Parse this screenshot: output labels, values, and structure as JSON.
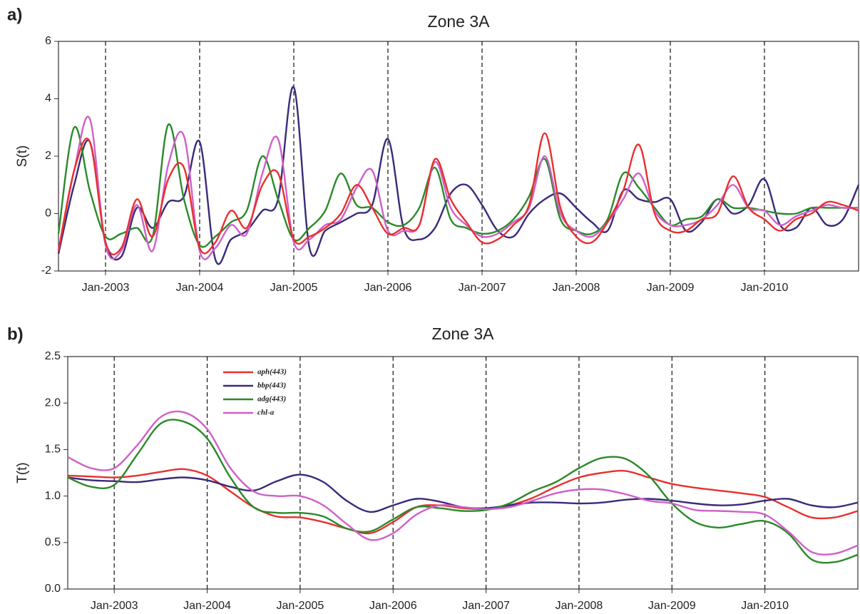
{
  "chart_data": [
    {
      "type": "line",
      "panel_label": "a)",
      "title": "Zone 3A",
      "y_label": "S(t)",
      "x": [
        2002.5,
        2002.667,
        2002.833,
        2003,
        2003.167,
        2003.333,
        2003.5,
        2003.667,
        2003.833,
        2004,
        2004.167,
        2004.333,
        2004.5,
        2004.667,
        2004.833,
        2005,
        2005.167,
        2005.333,
        2005.5,
        2005.667,
        2005.833,
        2006,
        2006.167,
        2006.333,
        2006.5,
        2006.667,
        2006.833,
        2007,
        2007.167,
        2007.333,
        2007.5,
        2007.667,
        2007.833,
        2008,
        2008.167,
        2008.333,
        2008.5,
        2008.667,
        2008.833,
        2009,
        2009.167,
        2009.333,
        2009.5,
        2009.667,
        2009.833,
        2010,
        2010.167,
        2010.333,
        2010.5,
        2010.667,
        2010.833,
        2011
      ],
      "series": [
        {
          "color": "#3a2a7a",
          "values": [
            -1.4,
            1.0,
            2.5,
            -1.0,
            -1.5,
            0.2,
            -0.5,
            0.4,
            0.6,
            2.5,
            -1.6,
            -0.9,
            -0.6,
            0.1,
            0.5,
            4.4,
            -1.2,
            -0.6,
            -0.3,
            0.0,
            0.3,
            2.6,
            -0.5,
            -0.9,
            -0.5,
            0.7,
            1.0,
            0.3,
            -0.6,
            -0.8,
            0.0,
            0.5,
            0.7,
            0.2,
            -0.3,
            -0.6,
            0.8,
            0.5,
            0.4,
            0.5,
            -0.6,
            -0.3,
            0.5,
            0.0,
            0.3,
            1.2,
            -0.4,
            -0.5,
            0.2,
            -0.4,
            -0.2,
            1.0
          ]
        },
        {
          "color": "#2a8a2a",
          "values": [
            -0.7,
            3.0,
            0.8,
            -0.8,
            -0.7,
            -0.5,
            -0.8,
            3.1,
            0.5,
            -1.1,
            -0.8,
            -0.3,
            0.1,
            2.0,
            0.5,
            -0.9,
            -0.5,
            0.1,
            1.4,
            0.3,
            0.2,
            -0.3,
            -0.4,
            0.2,
            1.6,
            -0.2,
            -0.5,
            -0.7,
            -0.6,
            -0.2,
            0.6,
            1.9,
            -0.2,
            -0.6,
            -0.7,
            -0.2,
            1.4,
            0.9,
            0.2,
            -0.4,
            -0.2,
            -0.1,
            0.5,
            0.2,
            0.2,
            0.1,
            0.0,
            0.0,
            0.2,
            0.2,
            0.2,
            0.2
          ]
        },
        {
          "color": "#d060c8",
          "values": [
            -1.3,
            1.5,
            3.3,
            -1.1,
            -1.3,
            0.3,
            -1.3,
            1.7,
            2.7,
            -1.3,
            -1.2,
            -0.4,
            -0.7,
            1.4,
            2.6,
            -1.0,
            -0.9,
            -0.4,
            -0.2,
            0.9,
            1.5,
            -0.6,
            -0.6,
            -0.4,
            1.8,
            0.2,
            -0.4,
            -0.8,
            -0.7,
            -0.3,
            0.2,
            2.0,
            0.0,
            -0.6,
            -0.8,
            -0.3,
            0.5,
            1.4,
            0.1,
            -0.4,
            -0.4,
            -0.2,
            0.3,
            1.0,
            0.2,
            0.1,
            -0.4,
            -0.1,
            0.1,
            0.3,
            0.2,
            0.2
          ]
        },
        {
          "color": "#e8302e",
          "values": [
            -1.3,
            1.5,
            2.5,
            -1.0,
            -1.2,
            0.5,
            -0.8,
            1.2,
            1.6,
            -1.2,
            -1.0,
            0.1,
            -0.5,
            1.0,
            1.4,
            -0.9,
            -0.8,
            -0.5,
            0.0,
            1.0,
            0.2,
            -0.7,
            -0.5,
            -0.4,
            1.9,
            0.5,
            -0.3,
            -1.0,
            -0.9,
            -0.4,
            0.3,
            2.8,
            0.2,
            -0.8,
            -1.0,
            -0.3,
            0.8,
            2.4,
            0.0,
            -0.6,
            -0.6,
            -0.2,
            0.0,
            1.3,
            0.2,
            -0.2,
            -0.6,
            -0.2,
            0.0,
            0.4,
            0.3,
            0.1
          ]
        }
      ],
      "xlim": [
        2002.5,
        2011
      ],
      "xticks": [
        {
          "value": 2003,
          "label": "Jan-2003"
        },
        {
          "value": 2004,
          "label": "Jan-2004"
        },
        {
          "value": 2005,
          "label": "Jan-2005"
        },
        {
          "value": 2006,
          "label": "Jan-2006"
        },
        {
          "value": 2007,
          "label": "Jan-2007"
        },
        {
          "value": 2008,
          "label": "Jan-2008"
        },
        {
          "value": 2009,
          "label": "Jan-2009"
        },
        {
          "value": 2010,
          "label": "Jan-2010"
        }
      ],
      "ylim": [
        -2,
        6
      ],
      "yticks": [
        -2,
        0,
        2,
        4,
        6
      ],
      "grid": "x-dashed"
    },
    {
      "type": "line",
      "panel_label": "b)",
      "title": "Zone 3A",
      "y_label": "T(t)",
      "x": [
        2002.5,
        2002.75,
        2003,
        2003.25,
        2003.5,
        2003.75,
        2004,
        2004.25,
        2004.5,
        2004.75,
        2005,
        2005.25,
        2005.5,
        2005.75,
        2006,
        2006.25,
        2006.5,
        2006.75,
        2007,
        2007.25,
        2007.5,
        2007.75,
        2008,
        2008.25,
        2008.5,
        2008.75,
        2009,
        2009.25,
        2009.5,
        2009.75,
        2010,
        2010.25,
        2010.5,
        2010.75,
        2011
      ],
      "series": [
        {
          "name": "aph(443)",
          "color": "#e8302e",
          "values": [
            1.22,
            1.21,
            1.2,
            1.22,
            1.26,
            1.29,
            1.22,
            1.05,
            0.88,
            0.78,
            0.77,
            0.72,
            0.65,
            0.6,
            0.72,
            0.88,
            0.9,
            0.87,
            0.86,
            0.9,
            0.98,
            1.1,
            1.2,
            1.25,
            1.27,
            1.2,
            1.13,
            1.09,
            1.06,
            1.03,
            0.99,
            0.88,
            0.77,
            0.77,
            0.84
          ]
        },
        {
          "name": "bbp(443)",
          "color": "#3a2a7a",
          "values": [
            1.2,
            1.17,
            1.16,
            1.15,
            1.18,
            1.2,
            1.17,
            1.1,
            1.06,
            1.16,
            1.23,
            1.15,
            0.95,
            0.83,
            0.9,
            0.97,
            0.94,
            0.88,
            0.87,
            0.9,
            0.93,
            0.93,
            0.92,
            0.93,
            0.96,
            0.97,
            0.95,
            0.92,
            0.9,
            0.91,
            0.95,
            0.97,
            0.9,
            0.88,
            0.93
          ]
        },
        {
          "name": "adg(443)",
          "color": "#2a8a2a",
          "values": [
            1.2,
            1.1,
            1.12,
            1.45,
            1.78,
            1.8,
            1.62,
            1.2,
            0.88,
            0.82,
            0.82,
            0.78,
            0.65,
            0.62,
            0.75,
            0.88,
            0.87,
            0.84,
            0.85,
            0.92,
            1.05,
            1.15,
            1.3,
            1.41,
            1.4,
            1.22,
            0.92,
            0.72,
            0.66,
            0.7,
            0.73,
            0.6,
            0.32,
            0.29,
            0.37
          ]
        },
        {
          "name": "chl-a",
          "color": "#d060c8",
          "values": [
            1.42,
            1.3,
            1.3,
            1.55,
            1.85,
            1.9,
            1.72,
            1.3,
            1.05,
            1.0,
            1.0,
            0.9,
            0.7,
            0.53,
            0.6,
            0.8,
            0.9,
            0.88,
            0.86,
            0.88,
            0.95,
            1.03,
            1.07,
            1.07,
            1.02,
            0.95,
            0.92,
            0.85,
            0.84,
            0.83,
            0.8,
            0.62,
            0.4,
            0.38,
            0.47
          ]
        }
      ],
      "xlim": [
        2002.5,
        2011
      ],
      "xticks": [
        {
          "value": 2003,
          "label": "Jan-2003"
        },
        {
          "value": 2004,
          "label": "Jan-2004"
        },
        {
          "value": 2005,
          "label": "Jan-2005"
        },
        {
          "value": 2006,
          "label": "Jan-2006"
        },
        {
          "value": 2007,
          "label": "Jan-2007"
        },
        {
          "value": 2008,
          "label": "Jan-2008"
        },
        {
          "value": 2009,
          "label": "Jan-2009"
        },
        {
          "value": 2010,
          "label": "Jan-2010"
        }
      ],
      "ylim": [
        0,
        2.5
      ],
      "yticks": [
        {
          "value": 0,
          "label": "0.0"
        },
        {
          "value": 0.5,
          "label": "0.5"
        },
        {
          "value": 1,
          "label": "1.0"
        },
        {
          "value": 1.5,
          "label": "1.5"
        },
        {
          "value": 2,
          "label": "2.0"
        },
        {
          "value": 2.5,
          "label": "2.5"
        }
      ],
      "grid": "x-dashed",
      "legend": "upper left"
    }
  ]
}
